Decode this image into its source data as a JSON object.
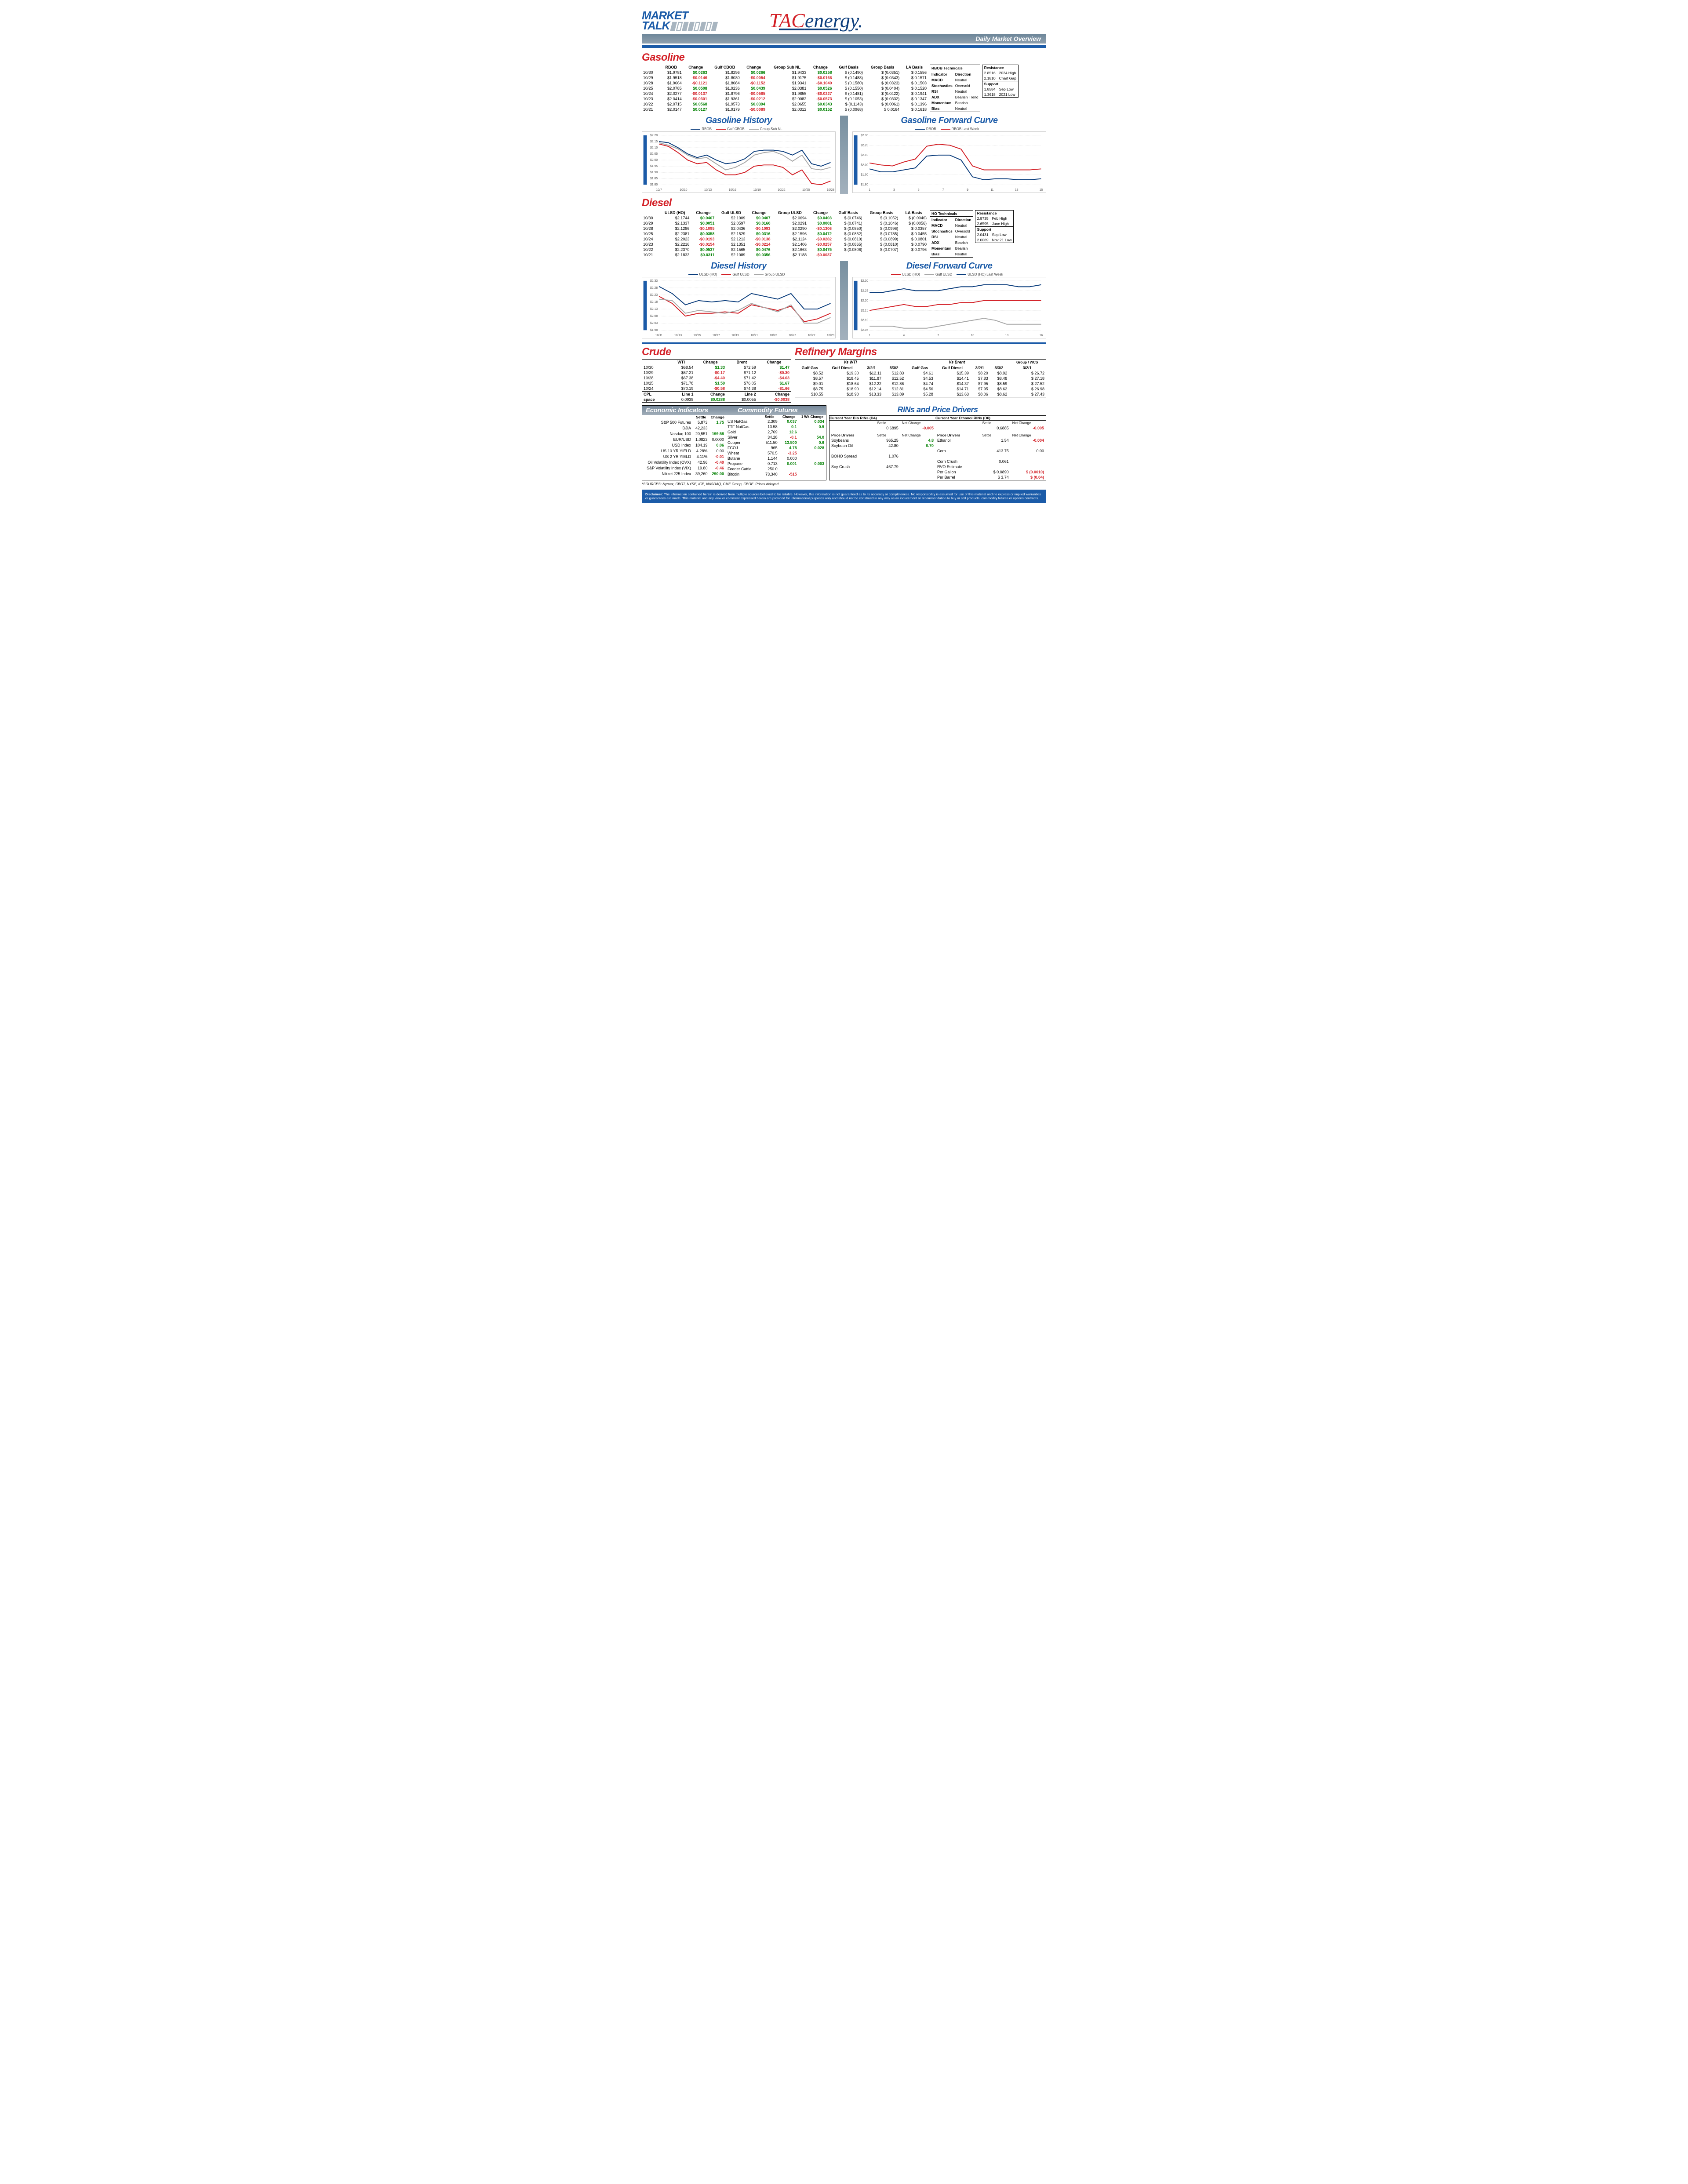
{
  "header": {
    "title_line1": "MARKET",
    "title_line2": "TALK",
    "logo_t": "T",
    "logo_ac": "AC",
    "logo_energy": "energy",
    "subtitle": "Daily Market Overview"
  },
  "colors": {
    "red": "#d32027",
    "blue": "#1b5ba8",
    "darkblue": "#0c3e7d",
    "green": "#008000",
    "grey": "#888888",
    "lightgrey": "#b8b8b8"
  },
  "gasoline": {
    "title": "Gasoline",
    "headers": [
      "",
      "RBOB",
      "Change",
      "Gulf CBOB",
      "Change",
      "Group Sub NL",
      "Change",
      "Gulf Basis",
      "Group Basis",
      "LA Basis"
    ],
    "rows": [
      [
        "10/30",
        "$1.9781",
        "$0.0263",
        "$1.8296",
        "$0.0266",
        "$1.9433",
        "$0.0258",
        "$ (0.1490)",
        "$ (0.0351)",
        "$ 0.1556"
      ],
      [
        "10/29",
        "$1.9518",
        "-$0.0146",
        "$1.8030",
        "-$0.0054",
        "$1.9175",
        "-$0.0166",
        "$ (0.1488)",
        "$ (0.0343)",
        "$ 0.1571"
      ],
      [
        "10/28",
        "$1.9664",
        "-$0.1121",
        "$1.8084",
        "-$0.1152",
        "$1.9341",
        "-$0.1040",
        "$ (0.1580)",
        "$ (0.0323)",
        "$ 0.1503"
      ],
      [
        "10/25",
        "$2.0785",
        "$0.0508",
        "$1.9236",
        "$0.0439",
        "$2.0381",
        "$0.0526",
        "$ (0.1550)",
        "$ (0.0404)",
        "$ 0.1520"
      ],
      [
        "10/24",
        "$2.0277",
        "-$0.0137",
        "$1.8796",
        "-$0.0565",
        "$1.9855",
        "-$0.0227",
        "$ (0.1481)",
        "$ (0.0422)",
        "$ 0.1941"
      ],
      [
        "10/23",
        "$2.0414",
        "-$0.0301",
        "$1.9361",
        "-$0.0212",
        "$2.0082",
        "-$0.0573",
        "$ (0.1053)",
        "$ (0.0332)",
        "$ 0.1347"
      ],
      [
        "10/22",
        "$2.0715",
        "$0.0568",
        "$1.9573",
        "$0.0394",
        "$2.0655",
        "$0.0343",
        "$ (0.1143)",
        "$ (0.0061)",
        "$ 0.1396"
      ],
      [
        "10/21",
        "$2.0147",
        "$0.0127",
        "$1.9179",
        "-$0.0089",
        "$2.0312",
        "$0.0152",
        "$ (0.0968)",
        "$  0.0164",
        "$ 0.1618"
      ]
    ],
    "change_cols": [
      2,
      4,
      6
    ],
    "tech_title": "RBOB Technicals",
    "tech_headers": [
      "Indicator",
      "Direction"
    ],
    "tech_rows": [
      [
        "MACD",
        "Neutral"
      ],
      [
        "Stochastics",
        "Oversold"
      ],
      [
        "RSI",
        "Neutral"
      ],
      [
        "ADX",
        "Bearish Trend"
      ],
      [
        "Momentum",
        "Bearish"
      ],
      [
        "Bias:",
        "Neutral"
      ]
    ],
    "res_title": "Resistance",
    "res_rows": [
      [
        "2.8516",
        "2024 High"
      ],
      [
        "2.1810",
        "Chart Gap"
      ]
    ],
    "sup_title": "Support",
    "sup_rows": [
      [
        "1.8584",
        "Sep Low"
      ],
      [
        "1.3618",
        "2021 Low"
      ]
    ]
  },
  "gas_history": {
    "title": "Gasoline History",
    "legend": [
      {
        "name": "RBOB",
        "color": "#0c3e7d"
      },
      {
        "name": "Gulf CBOB",
        "color": "#d32027"
      },
      {
        "name": "Group Sub NL",
        "color": "#a8a8a8"
      }
    ],
    "ylim": [
      1.8,
      2.2
    ],
    "ytick": 0.05,
    "xlabels": [
      "10/7",
      "10/10",
      "10/13",
      "10/16",
      "10/19",
      "10/22",
      "10/25",
      "10/28"
    ],
    "series": [
      [
        2.15,
        2.14,
        2.1,
        2.05,
        2.02,
        2.04,
        2.0,
        1.97,
        1.98,
        2.01,
        2.07,
        2.08,
        2.08,
        2.07,
        2.04,
        2.08,
        1.97,
        1.95,
        1.98
      ],
      [
        2.13,
        2.11,
        2.06,
        2.0,
        1.97,
        1.98,
        1.92,
        1.88,
        1.88,
        1.9,
        1.95,
        1.96,
        1.96,
        1.94,
        1.88,
        1.92,
        1.81,
        1.8,
        1.83
      ],
      [
        2.14,
        2.12,
        2.09,
        2.04,
        2.01,
        2.02,
        1.97,
        1.92,
        1.94,
        1.98,
        2.04,
        2.06,
        2.07,
        2.04,
        1.99,
        2.04,
        1.93,
        1.92,
        1.94
      ]
    ]
  },
  "gas_forward": {
    "title": "Gasoline Forward Curve",
    "legend": [
      {
        "name": "RBOB",
        "color": "#0c3e7d"
      },
      {
        "name": "RBOB Last Week",
        "color": "#d32027"
      }
    ],
    "ylim": [
      1.8,
      2.3
    ],
    "ytick": 0.1,
    "xlabels": [
      "1",
      "3",
      "5",
      "7",
      "9",
      "11",
      "13",
      "15"
    ],
    "series": [
      [
        1.96,
        1.93,
        1.93,
        1.95,
        1.97,
        2.09,
        2.1,
        2.1,
        2.05,
        1.88,
        1.85,
        1.86,
        1.86,
        1.85,
        1.85,
        1.86
      ],
      [
        2.02,
        2.0,
        1.99,
        2.03,
        2.06,
        2.19,
        2.21,
        2.2,
        2.16,
        1.99,
        1.95,
        1.95,
        1.95,
        1.95,
        1.95,
        1.96
      ]
    ]
  },
  "diesel": {
    "title": "Diesel",
    "headers": [
      "",
      "ULSD (HO)",
      "Change",
      "Gulf ULSD",
      "Change",
      "Group ULSD",
      "Change",
      "Gulf Basis",
      "Group Basis",
      "LA Basis"
    ],
    "rows": [
      [
        "10/30",
        "$2.1744",
        "$0.0407",
        "$2.1009",
        "$0.0407",
        "$2.0694",
        "$0.0403",
        "$ (0.0746)",
        "$ (0.1052)",
        "$ (0.0046)"
      ],
      [
        "10/29",
        "$2.1337",
        "$0.0051",
        "$2.0597",
        "$0.0160",
        "$2.0291",
        "$0.0001",
        "$ (0.0741)",
        "$ (0.1046)",
        "$ (0.0056)"
      ],
      [
        "10/28",
        "$2.1286",
        "-$0.1095",
        "$2.0436",
        "-$0.1093",
        "$2.0290",
        "-$0.1306",
        "$ (0.0850)",
        "$ (0.0996)",
        "$ 0.0357"
      ],
      [
        "10/25",
        "$2.2381",
        "$0.0358",
        "$2.1529",
        "$0.0316",
        "$2.1596",
        "$0.0472",
        "$ (0.0852)",
        "$ (0.0785)",
        "$ 0.0455"
      ],
      [
        "10/24",
        "$2.2023",
        "-$0.0193",
        "$2.1213",
        "-$0.0138",
        "$2.1124",
        "-$0.0282",
        "$ (0.0810)",
        "$ (0.0899)",
        "$ 0.0801"
      ],
      [
        "10/23",
        "$2.2216",
        "-$0.0154",
        "$2.1351",
        "-$0.0214",
        "$2.1406",
        "-$0.0257",
        "$ (0.0865)",
        "$ (0.0810)",
        "$ 0.0790"
      ],
      [
        "10/22",
        "$2.2370",
        "$0.0537",
        "$2.1565",
        "$0.0476",
        "$2.1663",
        "$0.0475",
        "$ (0.0806)",
        "$ (0.0707)",
        "$ 0.0796"
      ],
      [
        "10/21",
        "$2.1833",
        "$0.0311",
        "$2.1089",
        "$0.0356",
        "$2.1188",
        "-$0.0037",
        "",
        "",
        ""
      ]
    ],
    "change_cols": [
      2,
      4,
      6
    ],
    "tech_title": "HO Technicals",
    "tech_headers": [
      "Indicator",
      "Direction"
    ],
    "tech_rows": [
      [
        "MACD",
        "Neutral"
      ],
      [
        "Stochastics",
        "Oversold"
      ],
      [
        "RSI",
        "Neutral"
      ],
      [
        "ADX",
        "Bearish"
      ],
      [
        "Momentum",
        "Bearish"
      ],
      [
        "Bias:",
        "Neutral"
      ]
    ],
    "res_title": "Resistance",
    "res_rows": [
      [
        "2.9735",
        "Feb High"
      ],
      [
        "2.6595",
        "June High"
      ]
    ],
    "sup_title": "Support",
    "sup_rows": [
      [
        "2.0431",
        "Sep Low"
      ],
      [
        "2.0069",
        "Nov 21 Low"
      ]
    ]
  },
  "diesel_history": {
    "title": "Diesel History",
    "legend": [
      {
        "name": "ULSD (HO)",
        "color": "#0c3e7d"
      },
      {
        "name": "Gulf ULSD",
        "color": "#d32027"
      },
      {
        "name": "Group ULSD",
        "color": "#a8a8a8"
      }
    ],
    "ylim": [
      1.98,
      2.33
    ],
    "ytick": 0.05,
    "xlabels": [
      "10/11",
      "10/13",
      "10/15",
      "10/17",
      "10/19",
      "10/21",
      "10/23",
      "10/25",
      "10/27",
      "10/29"
    ],
    "series": [
      [
        2.29,
        2.24,
        2.16,
        2.19,
        2.18,
        2.19,
        2.18,
        2.24,
        2.22,
        2.2,
        2.24,
        2.13,
        2.13,
        2.17
      ],
      [
        2.22,
        2.17,
        2.08,
        2.1,
        2.1,
        2.11,
        2.1,
        2.16,
        2.14,
        2.12,
        2.15,
        2.04,
        2.06,
        2.1
      ],
      [
        2.2,
        2.19,
        2.1,
        2.12,
        2.11,
        2.1,
        2.12,
        2.17,
        2.14,
        2.11,
        2.16,
        2.03,
        2.03,
        2.07
      ]
    ]
  },
  "diesel_forward": {
    "title": "Diesel Forward Curve",
    "legend": [
      {
        "name": "ULSD (HO)",
        "color": "#d32027"
      },
      {
        "name": "Gulf ULSD",
        "color": "#a8a8a8"
      },
      {
        "name": "ULSD (HO) Last Week",
        "color": "#0c3e7d"
      }
    ],
    "ylim": [
      2.05,
      2.3
    ],
    "ytick": 0.05,
    "xlabels": [
      "1",
      "4",
      "7",
      "10",
      "13",
      "16"
    ],
    "series": [
      [
        2.15,
        2.16,
        2.17,
        2.18,
        2.17,
        2.17,
        2.18,
        2.18,
        2.19,
        2.19,
        2.2,
        2.2,
        2.2,
        2.2,
        2.2,
        2.2
      ],
      [
        2.07,
        2.07,
        2.07,
        2.06,
        2.06,
        2.06,
        2.07,
        2.08,
        2.09,
        2.1,
        2.11,
        2.1,
        2.08,
        2.08,
        2.08,
        2.08
      ],
      [
        2.24,
        2.24,
        2.25,
        2.26,
        2.25,
        2.25,
        2.25,
        2.26,
        2.27,
        2.27,
        2.28,
        2.28,
        2.28,
        2.27,
        2.27,
        2.28
      ]
    ]
  },
  "crude": {
    "title": "Crude",
    "headers": [
      "",
      "WTI",
      "Change",
      "Brent",
      "Change"
    ],
    "rows": [
      [
        "10/30",
        "$68.54",
        "$1.33",
        "$72.59",
        "$1.47"
      ],
      [
        "10/29",
        "$67.21",
        "-$0.17",
        "$71.12",
        "-$0.30"
      ],
      [
        "10/28",
        "$67.38",
        "-$4.40",
        "$71.42",
        "-$4.63"
      ],
      [
        "10/25",
        "$71.78",
        "$1.59",
        "$76.05",
        "$1.67"
      ],
      [
        "10/24",
        "$70.19",
        "-$0.58",
        "$74.38",
        "-$1.66"
      ]
    ],
    "cpl_label": "CPL",
    "space_label": "space",
    "cpl_row": [
      "Line 1",
      "Change",
      "Line 2",
      "Change"
    ],
    "space_row": [
      "0.0938",
      "$0.0288",
      "$0.0055",
      "-$0.0038"
    ]
  },
  "refinery": {
    "title": "Refinery Margins",
    "header_wti": "Vs WTI",
    "header_brent": "Vs Brent",
    "header_group": "Group / WCS",
    "cols": [
      "Gulf Gas",
      "Gulf Diesel",
      "3/2/1",
      "5/3/2",
      "Gulf Gas",
      "Gulf Diesel",
      "3/2/1",
      "5/3/2",
      "3/2/1"
    ],
    "rows": [
      [
        "$8.52",
        "$19.30",
        "$12.11",
        "$12.83",
        "$4.61",
        "$15.39",
        "$8.20",
        "$8.92",
        "$  26.72"
      ],
      [
        "$8.57",
        "$18.45",
        "$11.87",
        "$12.52",
        "$4.53",
        "$14.41",
        "$7.83",
        "$8.48",
        "$  27.18"
      ],
      [
        "$9.01",
        "$18.64",
        "$12.22",
        "$12.86",
        "$4.74",
        "$14.37",
        "$7.95",
        "$8.59",
        "$  27.52"
      ],
      [
        "$8.75",
        "$18.90",
        "$12.14",
        "$12.81",
        "$4.56",
        "$14.71",
        "$7.95",
        "$8.62",
        "$  26.98"
      ],
      [
        "$10.55",
        "$18.90",
        "$13.33",
        "$13.89",
        "$5.28",
        "$13.63",
        "$8.06",
        "$8.62",
        "$  27.43"
      ]
    ]
  },
  "econ": {
    "title": "Economic Indicators",
    "headers": [
      "",
      "Settle",
      "Change"
    ],
    "rows": [
      [
        "S&P 500 Futures",
        "5,873",
        "1.75"
      ],
      [
        "DJIA",
        "42,233",
        ""
      ],
      [
        "Nasdaq 100",
        "20,551",
        "199.58"
      ],
      [
        "EUR/USD",
        "1.0823",
        "0.0000"
      ],
      [
        "USD Index",
        "104.19",
        "0.06"
      ],
      [
        "US 10 YR YIELD",
        "4.28%",
        "0.00"
      ],
      [
        "US 2 YR YIELD",
        "4.11%",
        "-0.01"
      ],
      [
        "Oil Volatility Index (OVX)",
        "42.96",
        "-0.49"
      ],
      [
        "S&P Volatility Index (VIX)",
        "19.80",
        "-0.46"
      ],
      [
        "Nikkei 225 Index",
        "39,260",
        "290.00"
      ]
    ]
  },
  "commod": {
    "title": "Commodity Futures",
    "headers": [
      "",
      "Settle",
      "Change",
      "1 Wk Change"
    ],
    "rows": [
      [
        "US NatGas",
        "2.309",
        "0.037",
        "0.034"
      ],
      [
        "TTF NatGas",
        "13.58",
        "0.1",
        "0.9"
      ],
      [
        "Gold",
        "2,769",
        "12.6",
        ""
      ],
      [
        "Silver",
        "34.28",
        "-0.1",
        "54.0"
      ],
      [
        "Copper",
        "511.50",
        "13.500",
        "0.6"
      ],
      [
        "FCOJ",
        "965",
        "4.75",
        "0.028"
      ],
      [
        "Wheat",
        "570.5",
        "-3.25",
        ""
      ],
      [
        "Butane",
        "1.144",
        "0.000",
        ""
      ],
      [
        "Propane",
        "0.713",
        "0.001",
        "0.003"
      ],
      [
        "Feeder Cattle",
        "250.0",
        "",
        ""
      ],
      [
        "Bitcoin",
        "73,340",
        "-515",
        ""
      ]
    ]
  },
  "rins": {
    "title": "RINs and Price Drivers",
    "d4_title": "Current Year Bio RINs (D4)",
    "d6_title": "Current Year Ethanol RINs (D6)",
    "d4": {
      "settle": "0.6895",
      "change": "-0.005"
    },
    "d6": {
      "settle": "0.6885",
      "change": "-0.005"
    },
    "drivers_left": [
      [
        "Soybeans",
        "965.25",
        "4.8"
      ],
      [
        "Soybean Oil",
        "42.80",
        "0.70"
      ],
      [
        "",
        ""
      ],
      [
        "BOHO Spread",
        "1.076",
        ""
      ],
      [
        "",
        ""
      ],
      [
        "Soy Crush",
        "467.79",
        ""
      ]
    ],
    "drivers_right": [
      [
        "Ethanol",
        "1.54",
        "-0.004"
      ],
      [
        "",
        ""
      ],
      [
        "Corn",
        "413.75",
        "0.00"
      ],
      [
        "",
        ""
      ],
      [
        "Corn Crush",
        "0.061",
        ""
      ],
      [
        "RVO Estimate",
        "",
        ""
      ],
      [
        "Per Gallon",
        "$   0.0890",
        "$    (0.0010)"
      ],
      [
        "Per Barrel",
        "$      3.74",
        "$       (0.04)"
      ]
    ],
    "label_price_drivers": "Price Drivers",
    "label_settle": "Settle",
    "label_net_change": "Net Change"
  },
  "sources": "*SOURCES: Nymex, CBOT, NYSE, ICE, NASDAQ, CME Group, CBOE.   Prices delayed.",
  "disclaimer": "Disclaimer: The information contained herein is derived from multiple sources believed to be reliable.  However, this information is not guaranteed as to its accuracy or completeness. No responsibility is assumed for use of this material and no express or implied warranties or guarantees are made. This material and any view or comment expressed herein are provided for informational purposes only and should not be construed in any way as an inducement or recommendation to buy or sell products, commodity futures or options contracts."
}
